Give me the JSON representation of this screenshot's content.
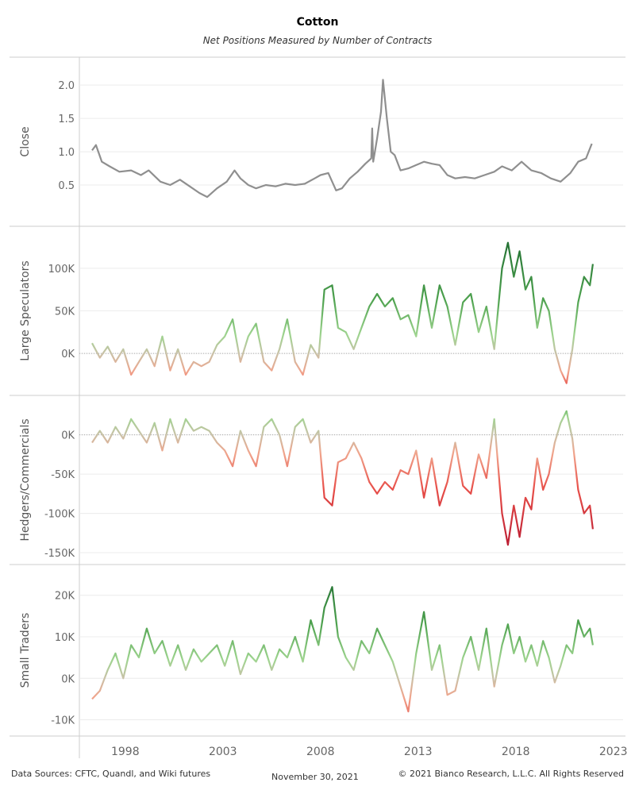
{
  "title": "Cotton",
  "subtitle": "Net Positions Measured by Number of Contracts",
  "footer": {
    "sources": "Data Sources: CFTC, Quandl, and Wiki futures",
    "date": "November 30, 2021",
    "copyright": "© 2021 Bianco Research, L.L.C. All Rights Reserved"
  },
  "chart_data": {
    "type": "line",
    "x_ticks": [
      "1998",
      "2003",
      "2008",
      "2013",
      "2018",
      "2023"
    ],
    "x_range": [
      1995.65,
      2023.5
    ],
    "panels": [
      {
        "name": "Close",
        "ylabel": "Close",
        "ylim": [
          0.0,
          2.3
        ],
        "y_ticks": [
          0.5,
          1.0,
          1.5,
          2.0
        ],
        "y_tick_labels": [
          "0.5",
          "1.0",
          "1.5",
          "2.0"
        ],
        "color_mode": "gray",
        "x": [
          1996.3,
          1996.5,
          1996.8,
          1997.2,
          1997.7,
          1998.3,
          1998.8,
          1999.2,
          1999.8,
          2000.3,
          2000.8,
          2001.3,
          2001.8,
          2002.2,
          2002.7,
          2003.2,
          2003.6,
          2003.9,
          2004.3,
          2004.7,
          2005.2,
          2005.7,
          2006.2,
          2006.7,
          2007.2,
          2007.7,
          2008.0,
          2008.4,
          2008.8,
          2009.1,
          2009.5,
          2009.9,
          2010.3,
          2010.6,
          2010.65,
          2010.7,
          2010.9,
          2011.1,
          2011.2,
          2011.4,
          2011.6,
          2011.8,
          2012.1,
          2012.5,
          2012.9,
          2013.3,
          2013.7,
          2014.1,
          2014.5,
          2014.9,
          2015.4,
          2015.9,
          2016.4,
          2016.9,
          2017.3,
          2017.8,
          2018.3,
          2018.8,
          2019.3,
          2019.8,
          2020.3,
          2020.8,
          2021.2,
          2021.6,
          2021.9
        ],
        "values": [
          1.02,
          1.1,
          0.85,
          0.78,
          0.7,
          0.72,
          0.65,
          0.72,
          0.55,
          0.5,
          0.58,
          0.48,
          0.38,
          0.32,
          0.45,
          0.55,
          0.72,
          0.6,
          0.5,
          0.45,
          0.5,
          0.48,
          0.52,
          0.5,
          0.52,
          0.6,
          0.65,
          0.68,
          0.42,
          0.45,
          0.6,
          0.7,
          0.82,
          0.9,
          1.35,
          0.85,
          1.2,
          1.6,
          2.08,
          1.5,
          1.0,
          0.95,
          0.72,
          0.75,
          0.8,
          0.85,
          0.82,
          0.8,
          0.65,
          0.6,
          0.62,
          0.6,
          0.65,
          0.7,
          0.78,
          0.72,
          0.85,
          0.72,
          0.68,
          0.6,
          0.55,
          0.68,
          0.85,
          0.9,
          1.12
        ]
      },
      {
        "name": "Large Speculators",
        "ylabel": "Large Speculators",
        "ylim": [
          -40000,
          140000
        ],
        "y_ticks": [
          0,
          50000,
          100000
        ],
        "y_tick_labels": [
          "0K",
          "50K",
          "100K"
        ],
        "zero_line": true,
        "color_mode": "diverging",
        "x": [
          1996.3,
          1996.7,
          1997.1,
          1997.5,
          1997.9,
          1998.3,
          1998.7,
          1999.1,
          1999.5,
          1999.9,
          2000.3,
          2000.7,
          2001.1,
          2001.5,
          2001.9,
          2002.3,
          2002.7,
          2003.1,
          2003.5,
          2003.9,
          2004.3,
          2004.7,
          2005.1,
          2005.5,
          2005.9,
          2006.3,
          2006.7,
          2007.1,
          2007.5,
          2007.9,
          2008.2,
          2008.6,
          2008.9,
          2009.3,
          2009.7,
          2010.1,
          2010.5,
          2010.9,
          2011.3,
          2011.7,
          2012.1,
          2012.5,
          2012.9,
          2013.3,
          2013.7,
          2014.1,
          2014.5,
          2014.9,
          2015.3,
          2015.7,
          2016.1,
          2016.5,
          2016.9,
          2017.3,
          2017.6,
          2017.9,
          2018.2,
          2018.5,
          2018.8,
          2019.1,
          2019.4,
          2019.7,
          2020.0,
          2020.3,
          2020.6,
          2020.9,
          2021.2,
          2021.5,
          2021.8,
          2021.95
        ],
        "values": [
          12000,
          -5000,
          8000,
          -10000,
          5000,
          -25000,
          -10000,
          5000,
          -15000,
          20000,
          -20000,
          5000,
          -25000,
          -10000,
          -15000,
          -10000,
          10000,
          20000,
          40000,
          -10000,
          20000,
          35000,
          -10000,
          -20000,
          5000,
          40000,
          -10000,
          -25000,
          10000,
          -5000,
          75000,
          80000,
          30000,
          25000,
          5000,
          30000,
          55000,
          70000,
          55000,
          65000,
          40000,
          45000,
          20000,
          80000,
          30000,
          80000,
          55000,
          10000,
          60000,
          70000,
          25000,
          55000,
          5000,
          100000,
          130000,
          90000,
          120000,
          75000,
          90000,
          30000,
          65000,
          50000,
          5000,
          -20000,
          -35000,
          5000,
          60000,
          90000,
          80000,
          105000
        ]
      },
      {
        "name": "Hedgers/Commercials",
        "ylabel": "Hedgers/Commercials",
        "ylim": [
          -155000,
          40000
        ],
        "y_ticks": [
          -150000,
          -100000,
          -50000,
          0
        ],
        "y_tick_labels": [
          "-150K",
          "-100K",
          "-50K",
          "0K"
        ],
        "zero_line": true,
        "color_mode": "diverging",
        "x": [
          1996.3,
          1996.7,
          1997.1,
          1997.5,
          1997.9,
          1998.3,
          1998.7,
          1999.1,
          1999.5,
          1999.9,
          2000.3,
          2000.7,
          2001.1,
          2001.5,
          2001.9,
          2002.3,
          2002.7,
          2003.1,
          2003.5,
          2003.9,
          2004.3,
          2004.7,
          2005.1,
          2005.5,
          2005.9,
          2006.3,
          2006.7,
          2007.1,
          2007.5,
          2007.9,
          2008.2,
          2008.6,
          2008.9,
          2009.3,
          2009.7,
          2010.1,
          2010.5,
          2010.9,
          2011.3,
          2011.7,
          2012.1,
          2012.5,
          2012.9,
          2013.3,
          2013.7,
          2014.1,
          2014.5,
          2014.9,
          2015.3,
          2015.7,
          2016.1,
          2016.5,
          2016.9,
          2017.3,
          2017.6,
          2017.9,
          2018.2,
          2018.5,
          2018.8,
          2019.1,
          2019.4,
          2019.7,
          2020.0,
          2020.3,
          2020.6,
          2020.9,
          2021.2,
          2021.5,
          2021.8,
          2021.95
        ],
        "values": [
          -10000,
          5000,
          -10000,
          10000,
          -5000,
          20000,
          5000,
          -10000,
          15000,
          -20000,
          20000,
          -10000,
          20000,
          5000,
          10000,
          5000,
          -10000,
          -20000,
          -40000,
          5000,
          -20000,
          -40000,
          10000,
          20000,
          0,
          -40000,
          10000,
          20000,
          -10000,
          5000,
          -80000,
          -90000,
          -35000,
          -30000,
          -10000,
          -30000,
          -60000,
          -75000,
          -60000,
          -70000,
          -45000,
          -50000,
          -20000,
          -80000,
          -30000,
          -90000,
          -60000,
          -10000,
          -65000,
          -75000,
          -25000,
          -55000,
          20000,
          -100000,
          -140000,
          -90000,
          -130000,
          -80000,
          -95000,
          -30000,
          -70000,
          -50000,
          -10000,
          15000,
          30000,
          -5000,
          -70000,
          -100000,
          -90000,
          -120000
        ]
      },
      {
        "name": "Small Traders",
        "ylabel": "Small Traders",
        "ylim": [
          -12000,
          25500
        ],
        "y_ticks": [
          -10000,
          0,
          10000,
          20000
        ],
        "y_tick_labels": [
          "-10K",
          "0K",
          "10K",
          "20K"
        ],
        "zero_line": false,
        "color_mode": "diverging",
        "x": [
          1996.3,
          1996.7,
          1997.1,
          1997.5,
          1997.9,
          1998.3,
          1998.7,
          1999.1,
          1999.5,
          1999.9,
          2000.3,
          2000.7,
          2001.1,
          2001.5,
          2001.9,
          2002.3,
          2002.7,
          2003.1,
          2003.5,
          2003.9,
          2004.3,
          2004.7,
          2005.1,
          2005.5,
          2005.9,
          2006.3,
          2006.7,
          2007.1,
          2007.5,
          2007.9,
          2008.2,
          2008.6,
          2008.9,
          2009.3,
          2009.7,
          2010.1,
          2010.5,
          2010.9,
          2011.3,
          2011.7,
          2012.1,
          2012.5,
          2012.9,
          2013.3,
          2013.7,
          2014.1,
          2014.5,
          2014.9,
          2015.3,
          2015.7,
          2016.1,
          2016.5,
          2016.9,
          2017.3,
          2017.6,
          2017.9,
          2018.2,
          2018.5,
          2018.8,
          2019.1,
          2019.4,
          2019.7,
          2020.0,
          2020.3,
          2020.6,
          2020.9,
          2021.2,
          2021.5,
          2021.8,
          2021.95
        ],
        "values": [
          -5000,
          -3000,
          2000,
          6000,
          0,
          8000,
          5000,
          12000,
          6000,
          9000,
          3000,
          8000,
          2000,
          7000,
          4000,
          6000,
          8000,
          3000,
          9000,
          1000,
          6000,
          4000,
          8000,
          2000,
          7000,
          5000,
          10000,
          4000,
          14000,
          8000,
          17000,
          22000,
          10000,
          5000,
          2000,
          9000,
          6000,
          12000,
          8000,
          4000,
          -2000,
          -8000,
          6000,
          16000,
          2000,
          8000,
          -4000,
          -3000,
          5000,
          10000,
          2000,
          12000,
          -2000,
          8000,
          13000,
          6000,
          10000,
          4000,
          8000,
          3000,
          9000,
          5000,
          -1000,
          3000,
          8000,
          6000,
          14000,
          10000,
          12000,
          8000
        ]
      }
    ]
  }
}
